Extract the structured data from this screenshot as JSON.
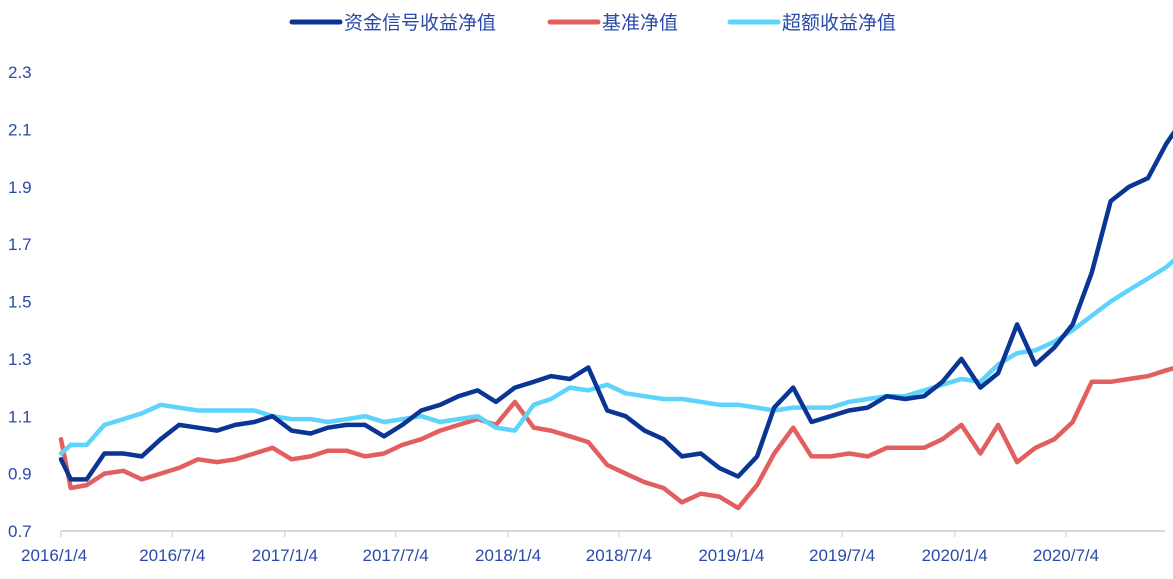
{
  "chart_data": {
    "type": "line",
    "title": "",
    "xlabel": "",
    "ylabel": "",
    "ylim": [
      0.7,
      2.3
    ],
    "yticks": [
      "0.7",
      "0.9",
      "1.1",
      "1.3",
      "1.5",
      "1.7",
      "1.9",
      "2.1",
      "2.3"
    ],
    "xticks": [
      "2016/1/4",
      "2016/7/4",
      "2017/1/4",
      "2017/7/4",
      "2018/1/4",
      "2018/7/4",
      "2019/1/4",
      "2019/7/4",
      "2020/1/4",
      "2020/7/4"
    ],
    "grid": false,
    "legend_position": "top",
    "x": [
      "2016-01-04",
      "2016-01-20",
      "2016-02-15",
      "2016-03-15",
      "2016-04-15",
      "2016-05-15",
      "2016-06-15",
      "2016-07-15",
      "2016-08-15",
      "2016-09-15",
      "2016-10-15",
      "2016-11-15",
      "2016-12-15",
      "2017-01-15",
      "2017-02-15",
      "2017-03-15",
      "2017-04-15",
      "2017-05-15",
      "2017-06-15",
      "2017-07-15",
      "2017-08-15",
      "2017-09-15",
      "2017-10-15",
      "2017-11-15",
      "2017-12-15",
      "2018-01-15",
      "2018-02-15",
      "2018-03-15",
      "2018-04-15",
      "2018-05-15",
      "2018-06-15",
      "2018-07-15",
      "2018-08-15",
      "2018-09-15",
      "2018-10-15",
      "2018-11-15",
      "2018-12-15",
      "2019-01-15",
      "2019-02-15",
      "2019-03-15",
      "2019-04-15",
      "2019-05-15",
      "2019-06-15",
      "2019-07-15",
      "2019-08-15",
      "2019-09-15",
      "2019-10-15",
      "2019-11-15",
      "2019-12-15",
      "2020-01-15",
      "2020-02-15",
      "2020-03-15",
      "2020-04-15",
      "2020-05-15",
      "2020-06-15",
      "2020-07-15",
      "2020-08-15",
      "2020-09-15",
      "2020-10-15",
      "2020-11-15",
      "2020-12-15",
      "2020-12-31"
    ],
    "series": [
      {
        "name": "资金信号收益净值",
        "color": "#0a3594",
        "values": [
          0.95,
          0.88,
          0.88,
          0.97,
          0.97,
          0.96,
          1.02,
          1.07,
          1.06,
          1.05,
          1.07,
          1.08,
          1.1,
          1.05,
          1.04,
          1.06,
          1.07,
          1.07,
          1.03,
          1.07,
          1.12,
          1.14,
          1.17,
          1.19,
          1.15,
          1.2,
          1.22,
          1.24,
          1.23,
          1.27,
          1.12,
          1.1,
          1.05,
          1.02,
          0.96,
          0.97,
          0.92,
          0.89,
          0.96,
          1.13,
          1.2,
          1.08,
          1.1,
          1.12,
          1.13,
          1.17,
          1.16,
          1.17,
          1.22,
          1.3,
          1.2,
          1.25,
          1.42,
          1.28,
          1.34,
          1.42,
          1.6,
          1.85,
          1.9,
          1.93,
          2.05,
          2.1
        ]
      },
      {
        "name": "基准净值",
        "color": "#e35f5f",
        "values": [
          1.02,
          0.85,
          0.86,
          0.9,
          0.91,
          0.88,
          0.9,
          0.92,
          0.95,
          0.94,
          0.95,
          0.97,
          0.99,
          0.95,
          0.96,
          0.98,
          0.98,
          0.96,
          0.97,
          1.0,
          1.02,
          1.05,
          1.07,
          1.09,
          1.07,
          1.15,
          1.06,
          1.05,
          1.03,
          1.01,
          0.93,
          0.9,
          0.87,
          0.85,
          0.8,
          0.83,
          0.82,
          0.78,
          0.86,
          0.97,
          1.06,
          0.96,
          0.96,
          0.97,
          0.96,
          0.99,
          0.99,
          0.99,
          1.02,
          1.07,
          0.97,
          1.07,
          0.94,
          0.99,
          1.02,
          1.08,
          1.22,
          1.22,
          1.23,
          1.24,
          1.26,
          1.27
        ]
      },
      {
        "name": "超额收益净值",
        "color": "#5ed3fb",
        "values": [
          0.97,
          1.0,
          1.0,
          1.07,
          1.09,
          1.11,
          1.14,
          1.13,
          1.12,
          1.12,
          1.12,
          1.12,
          1.1,
          1.09,
          1.09,
          1.08,
          1.09,
          1.1,
          1.08,
          1.09,
          1.1,
          1.08,
          1.09,
          1.1,
          1.06,
          1.05,
          1.14,
          1.16,
          1.2,
          1.19,
          1.21,
          1.18,
          1.17,
          1.16,
          1.16,
          1.15,
          1.14,
          1.14,
          1.13,
          1.12,
          1.13,
          1.13,
          1.13,
          1.15,
          1.16,
          1.17,
          1.17,
          1.19,
          1.21,
          1.23,
          1.22,
          1.28,
          1.32,
          1.33,
          1.36,
          1.4,
          1.45,
          1.5,
          1.54,
          1.58,
          1.62,
          1.65
        ]
      }
    ]
  }
}
